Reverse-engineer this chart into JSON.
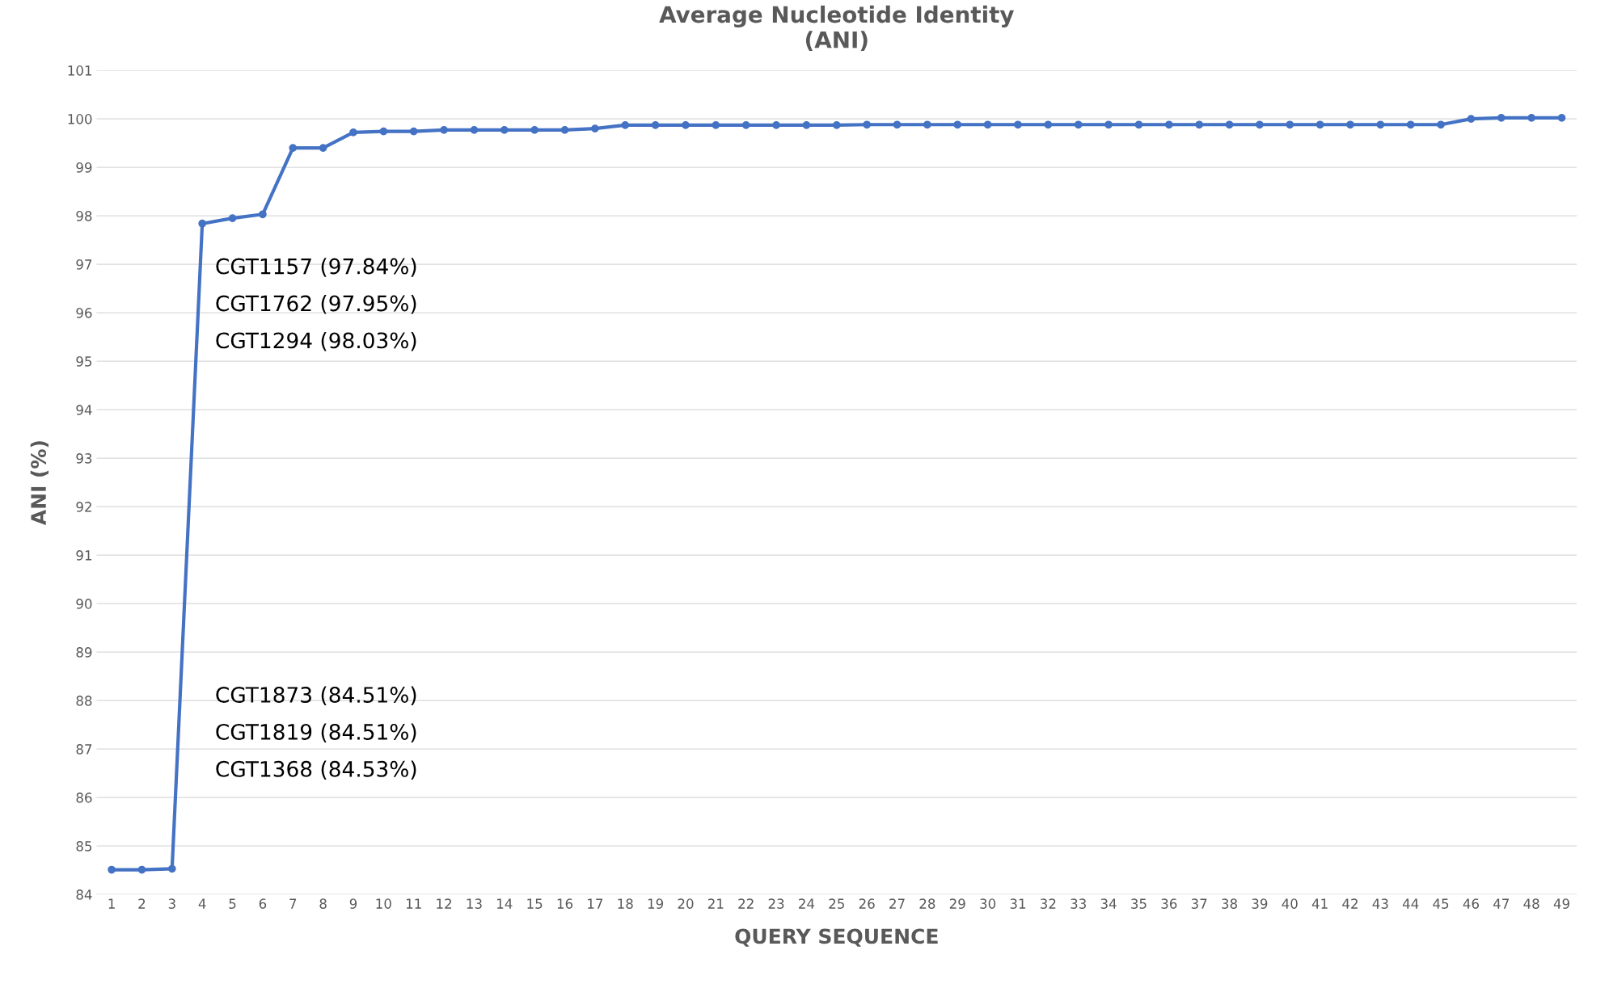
{
  "chart_data": {
    "type": "line",
    "title": "Average Nucleotide Identity\n(ANI)",
    "xlabel": "QUERY SEQUENCE",
    "ylabel": "ANI (%)",
    "categories": [
      "1",
      "2",
      "3",
      "4",
      "5",
      "6",
      "7",
      "8",
      "9",
      "10",
      "11",
      "12",
      "13",
      "14",
      "15",
      "16",
      "17",
      "18",
      "19",
      "20",
      "21",
      "22",
      "23",
      "24",
      "25",
      "26",
      "27",
      "28",
      "29",
      "30",
      "31",
      "32",
      "33",
      "34",
      "35",
      "36",
      "37",
      "38",
      "39",
      "40",
      "41",
      "42",
      "43",
      "44",
      "45",
      "46",
      "47",
      "48",
      "49"
    ],
    "series": [
      {
        "color": "#4472c4",
        "values": [
          84.51,
          84.51,
          84.53,
          97.84,
          97.95,
          98.03,
          99.4,
          99.4,
          99.72,
          99.74,
          99.74,
          99.77,
          99.77,
          99.77,
          99.77,
          99.77,
          99.8,
          99.87,
          99.87,
          99.87,
          99.87,
          99.87,
          99.87,
          99.87,
          99.87,
          99.88,
          99.88,
          99.88,
          99.88,
          99.88,
          99.88,
          99.88,
          99.88,
          99.88,
          99.88,
          99.88,
          99.88,
          99.88,
          99.88,
          99.88,
          99.88,
          99.88,
          99.88,
          99.88,
          99.88,
          100.0,
          100.02,
          100.02,
          100.02
        ]
      }
    ],
    "ylim": [
      84,
      101
    ],
    "yticks": [
      84,
      85,
      86,
      87,
      88,
      89,
      90,
      91,
      92,
      93,
      94,
      95,
      96,
      97,
      98,
      99,
      100,
      101
    ],
    "grid": "y",
    "marker": "circle",
    "line_style": "solid",
    "annotations": [
      "CGT1157 (97.84%)",
      "CGT1762 (97.95%)",
      "CGT1294 (98.03%)",
      "CGT1873 (84.51%)",
      "CGT1819 (84.51%)",
      "CGT1368 (84.53%)"
    ]
  }
}
